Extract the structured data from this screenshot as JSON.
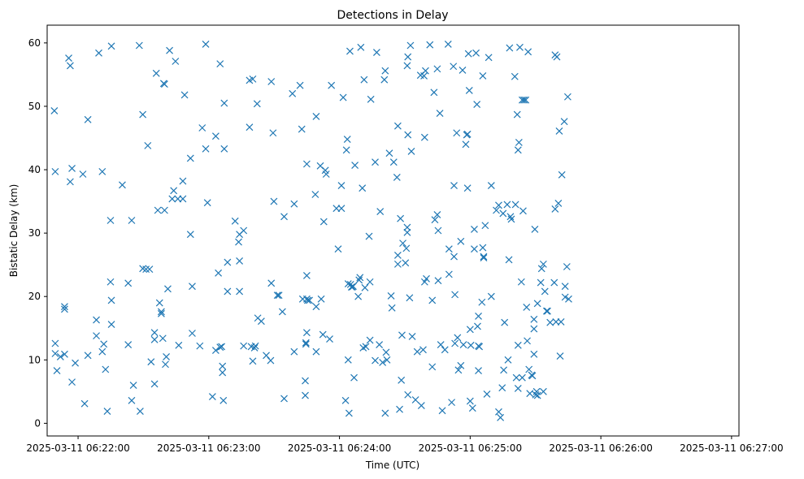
{
  "chart_data": {
    "type": "scatter",
    "title": "Detections in Delay",
    "xlabel": "Time (UTC)",
    "ylabel": "Bistatic Delay (km)",
    "marker": "x",
    "color": "#1f77b4",
    "grid": false,
    "legend": "none",
    "x_unit": "seconds after 2025-03-11 06:21:00 UTC",
    "xlim": [
      45.8,
      363.4
    ],
    "ylim": [
      -2.0,
      62.8
    ],
    "x_ticks": [
      {
        "value": 60,
        "label": "2025-03-11 06:22:00"
      },
      {
        "value": 120,
        "label": "2025-03-11 06:23:00"
      },
      {
        "value": 180,
        "label": "2025-03-11 06:24:00"
      },
      {
        "value": 240,
        "label": "2025-03-11 06:25:00"
      },
      {
        "value": 300,
        "label": "2025-03-11 06:26:00"
      },
      {
        "value": 360,
        "label": "2025-03-11 06:27:00"
      }
    ],
    "y_ticks": [
      0,
      10,
      20,
      30,
      40,
      50,
      60
    ],
    "points": [
      [
        49.1,
        49.3
      ],
      [
        49.5,
        39.7
      ],
      [
        49.5,
        12.6
      ],
      [
        49.5,
        11.0
      ],
      [
        50.3,
        8.3
      ],
      [
        51.9,
        10.5
      ],
      [
        53.8,
        10.9
      ],
      [
        53.8,
        18.4
      ],
      [
        53.8,
        18.0
      ],
      [
        55.7,
        57.6
      ],
      [
        56.4,
        38.1
      ],
      [
        56.4,
        56.4
      ],
      [
        57.2,
        40.2
      ],
      [
        57.2,
        6.5
      ],
      [
        58.7,
        9.5
      ],
      [
        62.2,
        39.3
      ],
      [
        63.0,
        3.1
      ],
      [
        64.5,
        10.7
      ],
      [
        64.5,
        47.9
      ],
      [
        68.4,
        16.3
      ],
      [
        68.4,
        13.8
      ],
      [
        69.5,
        58.4
      ],
      [
        71.1,
        39.7
      ],
      [
        71.1,
        11.3
      ],
      [
        71.8,
        12.5
      ],
      [
        72.6,
        8.5
      ],
      [
        73.4,
        1.9
      ],
      [
        74.9,
        32.0
      ],
      [
        74.9,
        22.3
      ],
      [
        75.3,
        19.4
      ],
      [
        75.3,
        15.6
      ],
      [
        75.3,
        59.5
      ],
      [
        80.3,
        37.6
      ],
      [
        83.0,
        12.4
      ],
      [
        83.0,
        22.1
      ],
      [
        84.6,
        32.0
      ],
      [
        84.6,
        3.6
      ],
      [
        85.4,
        6.0
      ],
      [
        88.1,
        59.6
      ],
      [
        88.5,
        1.9
      ],
      [
        89.7,
        48.7
      ],
      [
        89.7,
        24.4
      ],
      [
        91.2,
        24.3
      ],
      [
        92.0,
        43.8
      ],
      [
        92.8,
        24.3
      ],
      [
        93.5,
        9.7
      ],
      [
        95.1,
        6.2
      ],
      [
        95.1,
        13.2
      ],
      [
        95.1,
        14.3
      ],
      [
        95.9,
        55.2
      ],
      [
        96.6,
        33.6
      ],
      [
        97.4,
        19.0
      ],
      [
        98.2,
        17.6
      ],
      [
        98.2,
        17.3
      ],
      [
        98.9,
        13.4
      ],
      [
        99.3,
        53.6
      ],
      [
        99.7,
        53.5
      ],
      [
        99.7,
        33.6
      ],
      [
        100.1,
        9.3
      ],
      [
        100.5,
        10.5
      ],
      [
        101.2,
        21.2
      ],
      [
        102.0,
        58.8
      ],
      [
        103.2,
        35.4
      ],
      [
        103.9,
        36.7
      ],
      [
        104.7,
        57.1
      ],
      [
        105.8,
        35.4
      ],
      [
        106.2,
        12.3
      ],
      [
        108.1,
        35.4
      ],
      [
        108.1,
        38.2
      ],
      [
        108.9,
        51.8
      ],
      [
        111.6,
        29.8
      ],
      [
        111.6,
        41.8
      ],
      [
        112.4,
        21.6
      ],
      [
        112.4,
        14.2
      ],
      [
        115.9,
        12.2
      ],
      [
        117.0,
        46.6
      ],
      [
        118.6,
        59.8
      ],
      [
        118.6,
        43.3
      ],
      [
        119.4,
        34.8
      ],
      [
        121.7,
        4.2
      ],
      [
        123.2,
        45.3
      ],
      [
        123.2,
        11.5
      ],
      [
        124.4,
        23.7
      ],
      [
        125.2,
        56.7
      ],
      [
        125.2,
        12.0
      ],
      [
        125.9,
        12.1
      ],
      [
        126.3,
        9.0
      ],
      [
        126.3,
        8.0
      ],
      [
        126.7,
        3.6
      ],
      [
        127.1,
        50.5
      ],
      [
        127.1,
        43.3
      ],
      [
        128.6,
        20.8
      ],
      [
        128.6,
        25.4
      ],
      [
        132.1,
        31.9
      ],
      [
        133.7,
        28.6
      ],
      [
        134.1,
        29.8
      ],
      [
        134.1,
        25.6
      ],
      [
        134.1,
        20.8
      ],
      [
        136.0,
        30.4
      ],
      [
        136.0,
        12.2
      ],
      [
        138.7,
        46.7
      ],
      [
        138.7,
        54.1
      ],
      [
        139.5,
        12.1
      ],
      [
        140.2,
        54.3
      ],
      [
        140.2,
        9.8
      ],
      [
        141.0,
        11.9
      ],
      [
        141.4,
        12.2
      ],
      [
        142.2,
        50.4
      ],
      [
        142.5,
        16.6
      ],
      [
        144.1,
        16.1
      ],
      [
        146.4,
        10.7
      ],
      [
        148.4,
        9.9
      ],
      [
        148.7,
        22.1
      ],
      [
        148.7,
        53.9
      ],
      [
        149.5,
        45.8
      ],
      [
        149.9,
        35.0
      ],
      [
        151.5,
        20.2
      ],
      [
        152.2,
        20.2
      ],
      [
        153.8,
        17.6
      ],
      [
        154.6,
        3.9
      ],
      [
        154.6,
        32.6
      ],
      [
        158.4,
        52.0
      ],
      [
        159.2,
        11.3
      ],
      [
        159.2,
        34.6
      ],
      [
        161.9,
        53.3
      ],
      [
        162.7,
        46.4
      ],
      [
        163.1,
        19.6
      ],
      [
        164.3,
        4.4
      ],
      [
        164.3,
        6.7
      ],
      [
        164.6,
        12.7
      ],
      [
        164.6,
        12.5
      ],
      [
        165.0,
        40.9
      ],
      [
        165.0,
        23.3
      ],
      [
        165.0,
        19.6
      ],
      [
        165.0,
        14.3
      ],
      [
        165.4,
        19.4
      ],
      [
        166.2,
        19.4
      ],
      [
        168.9,
        36.1
      ],
      [
        169.3,
        48.4
      ],
      [
        169.3,
        18.4
      ],
      [
        169.3,
        11.3
      ],
      [
        171.2,
        40.6
      ],
      [
        171.6,
        19.6
      ],
      [
        172.4,
        14.0
      ],
      [
        172.8,
        31.8
      ],
      [
        173.5,
        39.9
      ],
      [
        173.9,
        39.3
      ],
      [
        175.5,
        13.3
      ],
      [
        176.3,
        53.3
      ],
      [
        178.6,
        33.9
      ],
      [
        179.4,
        27.5
      ],
      [
        180.9,
        37.5
      ],
      [
        180.9,
        33.9
      ],
      [
        181.7,
        51.4
      ],
      [
        182.8,
        3.6
      ],
      [
        183.2,
        43.1
      ],
      [
        183.6,
        44.8
      ],
      [
        184.0,
        10.0
      ],
      [
        184.0,
        22.0
      ],
      [
        184.4,
        1.6
      ],
      [
        184.8,
        58.7
      ],
      [
        185.1,
        21.9
      ],
      [
        185.5,
        21.5
      ],
      [
        185.9,
        21.5
      ],
      [
        186.3,
        21.6
      ],
      [
        186.7,
        7.2
      ],
      [
        187.1,
        40.7
      ],
      [
        188.6,
        20.0
      ],
      [
        189.0,
        22.6
      ],
      [
        189.4,
        23.0
      ],
      [
        189.8,
        59.3
      ],
      [
        190.5,
        37.1
      ],
      [
        190.9,
        11.9
      ],
      [
        191.3,
        54.2
      ],
      [
        191.7,
        21.4
      ],
      [
        192.1,
        12.1
      ],
      [
        193.6,
        29.5
      ],
      [
        194.0,
        22.3
      ],
      [
        194.0,
        13.1
      ],
      [
        194.4,
        51.1
      ],
      [
        196.4,
        41.2
      ],
      [
        196.4,
        9.9
      ],
      [
        197.1,
        58.5
      ],
      [
        198.3,
        12.4
      ],
      [
        198.7,
        33.4
      ],
      [
        199.8,
        9.6
      ],
      [
        200.6,
        54.2
      ],
      [
        201.0,
        55.6
      ],
      [
        201.0,
        1.6
      ],
      [
        201.4,
        11.2
      ],
      [
        201.8,
        10.0
      ],
      [
        202.9,
        42.6
      ],
      [
        203.7,
        20.1
      ],
      [
        204.1,
        18.2
      ],
      [
        204.9,
        41.2
      ],
      [
        206.4,
        38.8
      ],
      [
        206.8,
        46.9
      ],
      [
        206.8,
        26.5
      ],
      [
        206.8,
        25.1
      ],
      [
        207.6,
        2.2
      ],
      [
        208.0,
        32.3
      ],
      [
        208.4,
        6.8
      ],
      [
        208.7,
        13.9
      ],
      [
        209.1,
        28.4
      ],
      [
        210.3,
        25.3
      ],
      [
        210.7,
        27.6
      ],
      [
        211.1,
        56.4
      ],
      [
        211.1,
        30.1
      ],
      [
        211.1,
        30.9
      ],
      [
        211.4,
        57.8
      ],
      [
        211.4,
        45.5
      ],
      [
        211.4,
        4.5
      ],
      [
        212.2,
        19.8
      ],
      [
        212.6,
        59.6
      ],
      [
        213.0,
        42.9
      ],
      [
        213.4,
        13.7
      ],
      [
        214.9,
        3.7
      ],
      [
        215.7,
        11.3
      ],
      [
        217.2,
        54.9
      ],
      [
        217.6,
        2.8
      ],
      [
        218.4,
        11.6
      ],
      [
        218.8,
        54.8
      ],
      [
        219.1,
        45.1
      ],
      [
        219.1,
        22.3
      ],
      [
        219.5,
        55.6
      ],
      [
        219.9,
        22.8
      ],
      [
        221.5,
        59.7
      ],
      [
        222.6,
        19.4
      ],
      [
        222.6,
        8.9
      ],
      [
        223.4,
        52.2
      ],
      [
        223.8,
        32.1
      ],
      [
        224.9,
        55.9
      ],
      [
        224.9,
        32.9
      ],
      [
        225.3,
        30.4
      ],
      [
        225.3,
        22.5
      ],
      [
        226.1,
        48.9
      ],
      [
        226.5,
        12.4
      ],
      [
        227.2,
        2.0
      ],
      [
        228.4,
        11.6
      ],
      [
        229.9,
        59.8
      ],
      [
        230.3,
        27.5
      ],
      [
        230.3,
        23.5
      ],
      [
        231.5,
        3.3
      ],
      [
        232.3,
        56.3
      ],
      [
        232.6,
        37.5
      ],
      [
        232.6,
        26.3
      ],
      [
        233.0,
        20.3
      ],
      [
        233.0,
        12.6
      ],
      [
        233.8,
        45.8
      ],
      [
        234.2,
        13.5
      ],
      [
        234.6,
        8.4
      ],
      [
        235.7,
        9.1
      ],
      [
        235.7,
        28.7
      ],
      [
        236.5,
        55.7
      ],
      [
        236.9,
        12.4
      ],
      [
        238.0,
        44.0
      ],
      [
        238.4,
        45.5
      ],
      [
        238.8,
        45.6
      ],
      [
        238.8,
        37.1
      ],
      [
        239.2,
        58.3
      ],
      [
        239.6,
        52.5
      ],
      [
        240.0,
        3.5
      ],
      [
        240.0,
        14.8
      ],
      [
        240.3,
        12.3
      ],
      [
        241.1,
        2.4
      ],
      [
        241.9,
        30.6
      ],
      [
        241.9,
        27.5
      ],
      [
        242.7,
        58.4
      ],
      [
        243.1,
        50.3
      ],
      [
        243.4,
        15.3
      ],
      [
        243.8,
        12.2
      ],
      [
        243.8,
        16.9
      ],
      [
        243.8,
        8.3
      ],
      [
        244.2,
        12.1
      ],
      [
        245.4,
        19.1
      ],
      [
        245.8,
        27.7
      ],
      [
        245.8,
        54.8
      ],
      [
        246.2,
        26.1
      ],
      [
        246.2,
        26.3
      ],
      [
        246.9,
        31.2
      ],
      [
        247.7,
        4.6
      ],
      [
        248.5,
        57.7
      ],
      [
        249.7,
        20.0
      ],
      [
        249.7,
        37.5
      ],
      [
        252.0,
        33.6
      ],
      [
        253.1,
        34.4
      ],
      [
        253.1,
        1.8
      ],
      [
        253.9,
        0.9
      ],
      [
        254.7,
        5.6
      ],
      [
        255.1,
        33.1
      ],
      [
        255.4,
        8.4
      ],
      [
        255.8,
        15.9
      ],
      [
        257.0,
        34.5
      ],
      [
        257.4,
        10.0
      ],
      [
        257.8,
        25.8
      ],
      [
        258.1,
        59.2
      ],
      [
        258.5,
        32.6
      ],
      [
        258.9,
        32.2
      ],
      [
        260.5,
        54.7
      ],
      [
        260.8,
        34.5
      ],
      [
        261.2,
        7.2
      ],
      [
        261.6,
        48.7
      ],
      [
        262.0,
        43.1
      ],
      [
        262.0,
        12.3
      ],
      [
        262.0,
        5.5
      ],
      [
        262.4,
        44.3
      ],
      [
        262.8,
        59.3
      ],
      [
        263.5,
        22.3
      ],
      [
        263.9,
        51.0
      ],
      [
        263.9,
        7.2
      ],
      [
        264.3,
        33.5
      ],
      [
        264.7,
        51.0
      ],
      [
        265.5,
        51.0
      ],
      [
        265.9,
        18.3
      ],
      [
        266.2,
        13.0
      ],
      [
        266.6,
        58.6
      ],
      [
        267.0,
        8.5
      ],
      [
        267.4,
        4.7
      ],
      [
        268.2,
        7.6
      ],
      [
        268.6,
        7.5
      ],
      [
        269.3,
        16.4
      ],
      [
        269.3,
        14.9
      ],
      [
        269.3,
        10.9
      ],
      [
        269.7,
        30.6
      ],
      [
        270.1,
        4.5
      ],
      [
        270.5,
        5.0
      ],
      [
        270.9,
        18.9
      ],
      [
        270.9,
        4.4
      ],
      [
        272.4,
        22.2
      ],
      [
        272.8,
        24.4
      ],
      [
        273.6,
        5.0
      ],
      [
        273.6,
        25.1
      ],
      [
        274.3,
        20.8
      ],
      [
        275.1,
        17.7
      ],
      [
        275.5,
        17.7
      ],
      [
        276.7,
        15.9
      ],
      [
        278.6,
        22.2
      ],
      [
        279.0,
        58.1
      ],
      [
        279.0,
        33.8
      ],
      [
        279.4,
        16.0
      ],
      [
        279.8,
        57.8
      ],
      [
        280.5,
        34.7
      ],
      [
        280.9,
        46.1
      ],
      [
        281.3,
        10.6
      ],
      [
        281.7,
        16.0
      ],
      [
        282.1,
        39.2
      ],
      [
        283.2,
        47.6
      ],
      [
        283.6,
        21.6
      ],
      [
        283.6,
        19.9
      ],
      [
        284.4,
        24.7
      ],
      [
        284.8,
        51.5
      ],
      [
        285.2,
        19.6
      ]
    ]
  }
}
